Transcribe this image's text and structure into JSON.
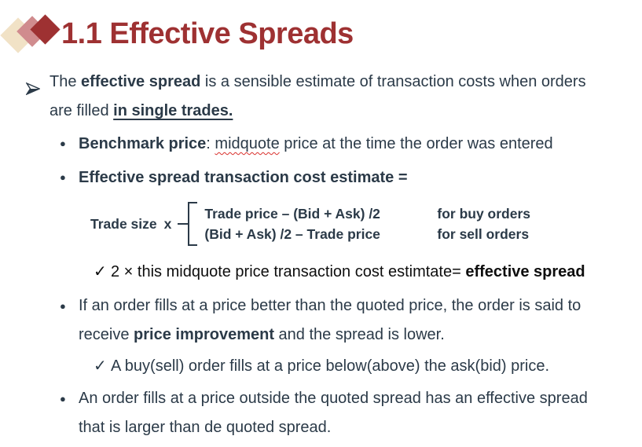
{
  "slide": {
    "title": "1.1 Effective Spreads",
    "logo_icon": "three-overlapping-diamonds"
  },
  "colors": {
    "title_red": "#9E3132",
    "body_navy": "#2B3A48",
    "plain_black": "#0E0E0E",
    "spellcheck_red": "#D9302C",
    "logo_cream": "#F1E2C6",
    "logo_pink": "#D08C8E",
    "logo_dark_red": "#9E3132"
  },
  "content": {
    "intro": {
      "marker_icon": "arrowhead-right",
      "segments": [
        {
          "t": "The "
        },
        {
          "t": "effective spread",
          "b": true
        },
        {
          "t": " is a sensible estimate of transaction costs when orders"
        },
        {
          "br": true
        },
        {
          "t": "are filled "
        },
        {
          "t": "in single trades.",
          "b": true,
          "u": true
        }
      ]
    },
    "benchmark": {
      "marker": "●",
      "segments": [
        {
          "t": "Benchmark price",
          "b": true
        },
        {
          "t": ": "
        },
        {
          "t": "midquote",
          "wavy": true
        },
        {
          "t": " price at the time the order was entered"
        }
      ]
    },
    "estimate": {
      "marker": "●",
      "segments": [
        {
          "t": "Effective spread transaction cost estimate =",
          "b": true
        }
      ]
    },
    "formula": {
      "lhs": "Trade size",
      "times": "x",
      "rows": [
        {
          "expr": "Trade price – (Bid + Ask) /2",
          "case": "for buy orders"
        },
        {
          "expr": "(Bid + Ask) /2 – Trade price",
          "case": "for sell orders"
        }
      ]
    },
    "check1": {
      "marker": "✓",
      "segments": [
        {
          "t": "2 × this midquote price transaction cost estimtate= "
        },
        {
          "t": "effective spread",
          "b": true
        }
      ]
    },
    "improvement": {
      "marker": "●",
      "segments": [
        {
          "t": "If an order fills at a price better than the quoted price, the order is said to"
        },
        {
          "br": true
        },
        {
          "t": "receive "
        },
        {
          "t": "price improvement",
          "b": true
        },
        {
          "t": " and the spread is lower."
        }
      ]
    },
    "check2": {
      "marker": "✓",
      "segments": [
        {
          "t": "A buy(sell) order fills at a price below(above) the ask(bid) price."
        }
      ]
    },
    "outside": {
      "marker": "●",
      "segments": [
        {
          "t": "An order fills at a price outside the quoted spread has an effective spread"
        },
        {
          "br": true
        },
        {
          "t": "that is larger than de quoted spread."
        }
      ]
    }
  }
}
